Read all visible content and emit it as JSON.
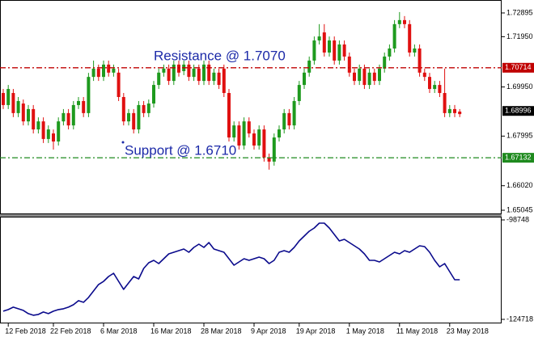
{
  "chart_data": [
    {
      "type": "candlestick",
      "categories": [
        null,
        "12 Feb 2018",
        null,
        null,
        null,
        null,
        null,
        null,
        null,
        null,
        "22 Feb 2018",
        null,
        null,
        null,
        null,
        null,
        null,
        null,
        null,
        null,
        "6 Mar 2018",
        null,
        null,
        null,
        null,
        null,
        null,
        null,
        null,
        null,
        "16 Mar 2018",
        null,
        null,
        null,
        null,
        null,
        null,
        null,
        null,
        null,
        "28 Mar 2018",
        null,
        null,
        null,
        null,
        null,
        null,
        null,
        null,
        null,
        "9 Apr 2018",
        null,
        null,
        null,
        null,
        null,
        null,
        null,
        null,
        "19 Apr 2018",
        null,
        null,
        null,
        null,
        null,
        null,
        null,
        null,
        null,
        "1 May 2018",
        null,
        null,
        null,
        null,
        null,
        null,
        null,
        null,
        null,
        "11 May 2018",
        null,
        null,
        null,
        null,
        null,
        null,
        null,
        null,
        null,
        "23 May 2018",
        null,
        null
      ],
      "open": [
        1.6971,
        1.6923,
        1.6971,
        1.6891,
        1.6929,
        1.6858,
        1.6907,
        1.6826,
        1.6858,
        1.6788,
        1.681,
        1.6778,
        1.6858,
        1.6891,
        1.6842,
        1.6923,
        1.6939,
        1.6891,
        1.7035,
        1.7068,
        1.7035,
        1.7084,
        1.7052,
        1.7052,
        1.6955,
        1.6858,
        1.6891,
        1.6826,
        1.6923,
        1.6891,
        1.6929,
        1.7003,
        1.7052,
        1.7068,
        1.7019,
        1.7084,
        1.7058,
        1.7084,
        1.7035,
        1.7068,
        1.7019,
        1.7084,
        1.7019,
        1.7052,
        1.7068,
        1.6971,
        1.6794,
        1.6842,
        1.6762,
        1.6858,
        1.681,
        1.6762,
        1.6826,
        1.6714,
        1.6698,
        1.6794,
        1.6826,
        1.6891,
        1.6842,
        1.6939,
        1.7003,
        1.7052,
        1.71,
        1.718,
        1.7212,
        1.7132,
        1.718,
        1.71,
        1.7164,
        1.7116,
        1.7052,
        1.7019,
        1.7068,
        1.7003,
        1.7052,
        1.7019,
        1.7068,
        1.7116,
        1.7148,
        1.7245,
        1.7261,
        1.7245,
        1.7132,
        1.7148,
        1.7052,
        1.7035,
        1.6987,
        1.7003,
        1.6971,
        1.6891,
        1.6907,
        1.6897
      ],
      "high": [
        1.6987,
        1.7003,
        1.6987,
        1.6955,
        1.6945,
        1.6923,
        1.6923,
        1.6874,
        1.6874,
        1.6842,
        1.6826,
        1.6874,
        1.6907,
        1.6907,
        1.6939,
        1.6955,
        1.6955,
        1.7051,
        1.71,
        1.7084,
        1.71,
        1.71,
        1.7084,
        1.7068,
        1.6971,
        1.6907,
        1.6907,
        1.6939,
        1.6939,
        1.6945,
        1.7019,
        1.7068,
        1.7084,
        1.7084,
        1.71,
        1.71,
        1.71,
        1.71,
        1.7084,
        1.7084,
        1.71,
        1.71,
        1.7068,
        1.7068,
        1.7084,
        1.6987,
        1.6858,
        1.6858,
        1.6874,
        1.6874,
        1.6826,
        1.6842,
        1.6842,
        1.673,
        1.681,
        1.6842,
        1.6907,
        1.6907,
        1.6955,
        1.7019,
        1.7068,
        1.7116,
        1.7196,
        1.7245,
        1.7245,
        1.7196,
        1.7196,
        1.718,
        1.718,
        1.7132,
        1.7068,
        1.7084,
        1.7084,
        1.7068,
        1.7068,
        1.7084,
        1.7132,
        1.7164,
        1.7261,
        1.7293,
        1.7277,
        1.7261,
        1.7164,
        1.7164,
        1.7068,
        1.7051,
        1.7019,
        1.7019,
        1.7068,
        1.6923,
        1.6923,
        1.6907
      ],
      "low": [
        1.6907,
        1.6907,
        1.6875,
        1.6875,
        1.6842,
        1.6842,
        1.681,
        1.681,
        1.6772,
        1.6772,
        1.6746,
        1.6762,
        1.6842,
        1.6826,
        1.6826,
        1.6907,
        1.6875,
        1.6875,
        1.7019,
        1.7019,
        1.7019,
        1.7036,
        1.7036,
        1.6939,
        1.6842,
        1.6842,
        1.681,
        1.681,
        1.6875,
        1.6875,
        1.6913,
        1.6987,
        1.7036,
        1.7003,
        1.7003,
        1.7036,
        1.7042,
        1.7019,
        1.7019,
        1.7003,
        1.7003,
        1.7003,
        1.7003,
        1.6987,
        1.6955,
        1.6778,
        1.6778,
        1.6746,
        1.6746,
        1.6794,
        1.6746,
        1.6746,
        1.6698,
        1.6666,
        1.6682,
        1.6778,
        1.681,
        1.6826,
        1.6826,
        1.6923,
        1.6987,
        1.7036,
        1.7084,
        1.7164,
        1.7116,
        1.7116,
        1.7084,
        1.7084,
        1.71,
        1.7036,
        1.7003,
        1.7003,
        1.6987,
        1.6987,
        1.7003,
        1.7003,
        1.7052,
        1.71,
        1.7132,
        1.7229,
        1.7229,
        1.7116,
        1.7116,
        1.7036,
        1.7019,
        1.6971,
        1.6971,
        1.6955,
        1.6875,
        1.6875,
        1.6875,
        1.6875
      ],
      "close": [
        1.6923,
        1.6987,
        1.6891,
        1.6939,
        1.6858,
        1.6907,
        1.6826,
        1.6858,
        1.6788,
        1.6826,
        1.6778,
        1.6858,
        1.6891,
        1.6842,
        1.6923,
        1.6939,
        1.6891,
        1.7035,
        1.7068,
        1.7035,
        1.7084,
        1.7052,
        1.7068,
        1.6955,
        1.6858,
        1.6891,
        1.6826,
        1.6923,
        1.6891,
        1.6929,
        1.7003,
        1.7052,
        1.7068,
        1.7019,
        1.7084,
        1.7052,
        1.7084,
        1.7035,
        1.7068,
        1.7019,
        1.7084,
        1.7019,
        1.7052,
        1.7003,
        1.6971,
        1.6794,
        1.6842,
        1.6762,
        1.6858,
        1.681,
        1.6762,
        1.6826,
        1.6714,
        1.6698,
        1.6794,
        1.6826,
        1.6891,
        1.6842,
        1.6939,
        1.7003,
        1.7052,
        1.71,
        1.718,
        1.7196,
        1.7132,
        1.718,
        1.71,
        1.7164,
        1.7116,
        1.7052,
        1.7019,
        1.7068,
        1.7003,
        1.7052,
        1.7019,
        1.7068,
        1.7116,
        1.7148,
        1.7245,
        1.7261,
        1.7245,
        1.7132,
        1.7148,
        1.7052,
        1.7035,
        1.6987,
        1.7003,
        1.6971,
        1.6891,
        1.6907,
        1.6891,
        1.6887
      ],
      "up_color": "#1e9a1e",
      "down_color": "#e01010",
      "ylim": [
        1.64885,
        1.7341
      ],
      "yticks": [
        1.72895,
        {
          "value": 1.7195,
          "label": "1.71950"
        },
        {
          "value": 1.6995,
          "label": "1.69950"
        },
        1.67995,
        {
          "value": 1.6602,
          "label": "1.66020"
        },
        1.65045
      ],
      "hlines": [
        {
          "value": 1.70714,
          "color": "#c00000"
        },
        {
          "value": 1.67132,
          "color": "#1e8a1e"
        }
      ],
      "last_price": 1.68996,
      "annotations": [
        {
          "text": "Resistance @ 1.7070"
        },
        {
          "text": "Support @ 1.6710"
        }
      ]
    },
    {
      "type": "line",
      "values": [
        -122591,
        -122169,
        -121536,
        -121958,
        -122380,
        -123224,
        -123646,
        -123435,
        -122802,
        -123224,
        -122591,
        -122169,
        -121958,
        -121536,
        -120903,
        -119848,
        -120270,
        -119004,
        -117316,
        -115628,
        -114784,
        -113518,
        -112674,
        -114784,
        -116894,
        -115206,
        -113518,
        -114151,
        -111408,
        -109931,
        -109298,
        -110142,
        -108876,
        -107610,
        -107188,
        -106766,
        -106344,
        -107188,
        -105922,
        -105078,
        -105922,
        -104656,
        -106344,
        -106766,
        -107188,
        -108876,
        -110564,
        -109720,
        -108876,
        -109298,
        -108876,
        -108454,
        -108876,
        -110142,
        -109298,
        -107188,
        -106766,
        -107188,
        -105922,
        -104234,
        -102968,
        -101702,
        -100858,
        -99592,
        -99592,
        -100858,
        -102546,
        -104234,
        -103812,
        -104656,
        -105500,
        -106344,
        -107610,
        -109298,
        -109298,
        -109720,
        -108876,
        -108032,
        -107188,
        -107610,
        -106766,
        -107188,
        -106344,
        -105500,
        -105711,
        -107188,
        -109298,
        -110986,
        -110142,
        -112252,
        -114362,
        -114362
      ],
      "color": "#0a0a8c",
      "ylim": [
        -124718,
        -98748
      ],
      "yticks": [
        -98748,
        -124718
      ]
    }
  ]
}
